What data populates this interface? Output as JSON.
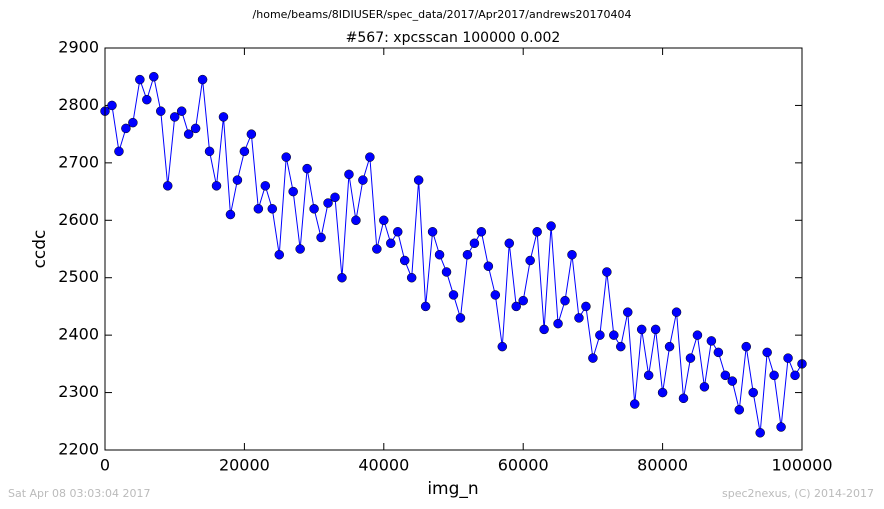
{
  "chart_data": {
    "type": "line",
    "suptitle": "/home/beams/8IDIUSER/spec_data/2017/Apr2017/andrews20170404",
    "title": "#567: xpcsscan 100000 0.002",
    "xlabel": "img_n",
    "ylabel": "ccdc",
    "timestamp": "Sat Apr 08 03:03:04 2017",
    "credit": "spec2nexus, (C) 2014-2017",
    "xlim": [
      0,
      100000
    ],
    "ylim": [
      2200,
      2900
    ],
    "xticks": [
      0,
      20000,
      40000,
      60000,
      80000,
      100000
    ],
    "yticks": [
      2200,
      2300,
      2400,
      2500,
      2600,
      2700,
      2800,
      2900
    ],
    "x": [
      0,
      1000,
      2000,
      3000,
      4000,
      5000,
      6000,
      7000,
      8000,
      9000,
      10000,
      11000,
      12000,
      13000,
      14000,
      15000,
      16000,
      17000,
      18000,
      19000,
      20000,
      21000,
      22000,
      23000,
      24000,
      25000,
      26000,
      27000,
      28000,
      29000,
      30000,
      31000,
      32000,
      33000,
      34000,
      35000,
      36000,
      37000,
      38000,
      39000,
      40000,
      41000,
      42000,
      43000,
      44000,
      45000,
      46000,
      47000,
      48000,
      49000,
      50000,
      51000,
      52000,
      53000,
      54000,
      55000,
      56000,
      57000,
      58000,
      59000,
      60000,
      61000,
      62000,
      63000,
      64000,
      65000,
      66000,
      67000,
      68000,
      69000,
      70000,
      71000,
      72000,
      73000,
      74000,
      75000,
      76000,
      77000,
      78000,
      79000,
      80000,
      81000,
      82000,
      83000,
      84000,
      85000,
      86000,
      87000,
      88000,
      89000,
      90000,
      91000,
      92000,
      93000,
      94000,
      95000,
      96000,
      97000,
      98000,
      99000,
      100000
    ],
    "series": [
      {
        "color": "#0000ff",
        "values": [
          2790,
          2800,
          2720,
          2760,
          2770,
          2845,
          2810,
          2850,
          2790,
          2660,
          2780,
          2790,
          2750,
          2760,
          2845,
          2720,
          2660,
          2780,
          2610,
          2670,
          2720,
          2750,
          2620,
          2660,
          2620,
          2540,
          2710,
          2650,
          2550,
          2690,
          2620,
          2570,
          2630,
          2640,
          2500,
          2680,
          2600,
          2670,
          2710,
          2550,
          2600,
          2560,
          2580,
          2530,
          2500,
          2670,
          2450,
          2580,
          2540,
          2510,
          2470,
          2430,
          2540,
          2560,
          2580,
          2520,
          2470,
          2380,
          2560,
          2450,
          2460,
          2530,
          2580,
          2410,
          2590,
          2420,
          2460,
          2540,
          2430,
          2450,
          2360,
          2400,
          2510,
          2400,
          2380,
          2440,
          2280,
          2410,
          2330,
          2410,
          2300,
          2380,
          2440,
          2290,
          2360,
          2400,
          2310,
          2390,
          2370,
          2330,
          2320,
          2270,
          2380,
          2300,
          2230,
          2370,
          2330,
          2240,
          2360,
          2330,
          2350
        ]
      }
    ]
  }
}
